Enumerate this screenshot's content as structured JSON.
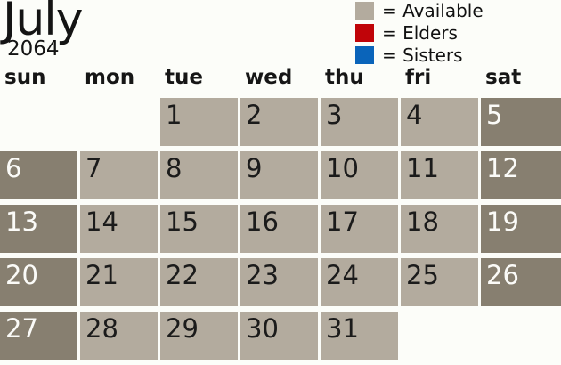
{
  "title": {
    "month": "July",
    "year": "2064"
  },
  "legend": {
    "items": [
      {
        "key": "available",
        "label": "= Available",
        "color": "#b3ab9e"
      },
      {
        "key": "elders",
        "label": "= Elders",
        "color": "#c00409"
      },
      {
        "key": "sisters",
        "label": "= Sisters",
        "color": "#0a64ba"
      }
    ]
  },
  "calendar": {
    "day_headers": [
      "sun",
      "mon",
      "tue",
      "wed",
      "thu",
      "fri",
      "sat"
    ],
    "weeks": [
      [
        {
          "day": "",
          "state": "empty"
        },
        {
          "day": "",
          "state": "empty"
        },
        {
          "day": "1",
          "state": "available"
        },
        {
          "day": "2",
          "state": "available"
        },
        {
          "day": "3",
          "state": "available"
        },
        {
          "day": "4",
          "state": "available"
        },
        {
          "day": "5",
          "state": "blocked"
        }
      ],
      [
        {
          "day": "6",
          "state": "blocked"
        },
        {
          "day": "7",
          "state": "available"
        },
        {
          "day": "8",
          "state": "available"
        },
        {
          "day": "9",
          "state": "available"
        },
        {
          "day": "10",
          "state": "available"
        },
        {
          "day": "11",
          "state": "available"
        },
        {
          "day": "12",
          "state": "blocked"
        }
      ],
      [
        {
          "day": "13",
          "state": "blocked"
        },
        {
          "day": "14",
          "state": "available"
        },
        {
          "day": "15",
          "state": "available"
        },
        {
          "day": "16",
          "state": "available"
        },
        {
          "day": "17",
          "state": "available"
        },
        {
          "day": "18",
          "state": "available"
        },
        {
          "day": "19",
          "state": "blocked"
        }
      ],
      [
        {
          "day": "20",
          "state": "blocked"
        },
        {
          "day": "21",
          "state": "available"
        },
        {
          "day": "22",
          "state": "available"
        },
        {
          "day": "23",
          "state": "available"
        },
        {
          "day": "24",
          "state": "available"
        },
        {
          "day": "25",
          "state": "available"
        },
        {
          "day": "26",
          "state": "blocked"
        }
      ],
      [
        {
          "day": "27",
          "state": "blocked"
        },
        {
          "day": "28",
          "state": "available"
        },
        {
          "day": "29",
          "state": "available"
        },
        {
          "day": "30",
          "state": "available"
        },
        {
          "day": "31",
          "state": "available"
        },
        {
          "day": "",
          "state": "empty"
        },
        {
          "day": "",
          "state": "empty"
        }
      ]
    ]
  },
  "colors": {
    "available": "#b3ab9e",
    "blocked": "#877f70",
    "elders_red": "#c00409",
    "sisters_blue": "#0a64ba",
    "background": "#fcfdf9",
    "day_text": "#1b1b1b",
    "blocked_day_text": "#fbfbf8"
  }
}
